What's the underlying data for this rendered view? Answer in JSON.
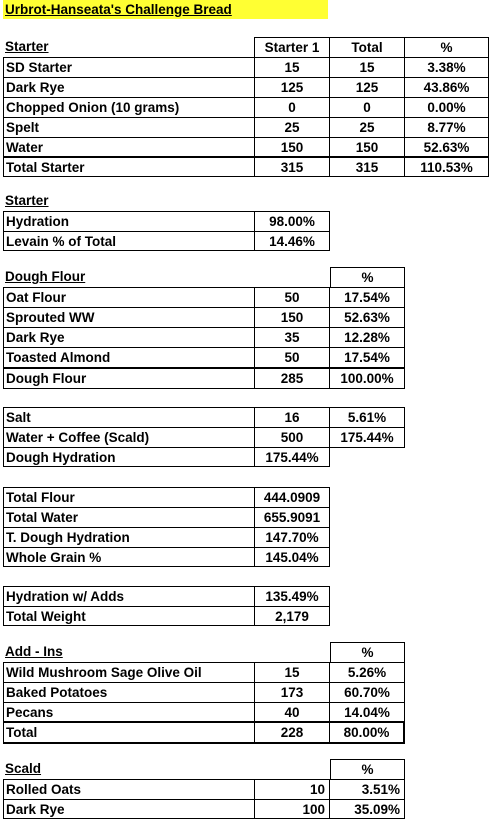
{
  "title": "Urbrot-Hanseata's Challenge Bread",
  "starter_table": {
    "header": [
      "Starter",
      "Starter 1",
      "Total",
      "%"
    ],
    "rows": [
      [
        "SD Starter",
        "15",
        "15",
        "3.38%"
      ],
      [
        "Dark Rye",
        "125",
        "125",
        "43.86%"
      ],
      [
        "Chopped Onion (10 grams)",
        "0",
        "0",
        "0.00%"
      ],
      [
        "Spelt",
        "25",
        "25",
        "8.77%"
      ],
      [
        "Water",
        "150",
        "150",
        "52.63%"
      ]
    ],
    "total": [
      "Total Starter",
      "315",
      "315",
      "110.53%"
    ]
  },
  "starter_summary": {
    "header": "Starter",
    "rows": [
      [
        "Hydration",
        "98.00%"
      ],
      [
        "Levain % of Total",
        "14.46%"
      ]
    ]
  },
  "dough_flour": {
    "header": "Dough Flour",
    "pct_header": "%",
    "rows": [
      [
        "Oat Flour",
        "50",
        "17.54%"
      ],
      [
        "Sprouted WW",
        "150",
        "52.63%"
      ],
      [
        "Dark Rye",
        "35",
        "12.28%"
      ],
      [
        "Toasted Almond",
        "50",
        "17.54%"
      ]
    ],
    "total": [
      "Dough Flour",
      "285",
      "100.00%"
    ]
  },
  "salt_water": {
    "rows": [
      [
        "Salt",
        "16",
        "5.61%"
      ],
      [
        "Water + Coffee (Scald)",
        "500",
        "175.44%"
      ]
    ],
    "hydration": [
      "Dough Hydration",
      "175.44%"
    ]
  },
  "totals": {
    "rows": [
      [
        "Total Flour",
        "444.0909"
      ],
      [
        "Total Water",
        "655.9091"
      ],
      [
        "T. Dough Hydration",
        "147.70%"
      ],
      [
        "Whole Grain %",
        "145.04%"
      ]
    ]
  },
  "adds_summary": {
    "rows": [
      [
        "Hydration w/ Adds",
        "135.49%"
      ],
      [
        "Total Weight",
        "2,179"
      ]
    ]
  },
  "add_ins": {
    "header": "Add - Ins",
    "pct_header": "%",
    "rows": [
      [
        "Wild Mushroom Sage Olive Oil",
        "15",
        "5.26%"
      ],
      [
        "Baked Potatoes",
        "173",
        "60.70%"
      ],
      [
        "Pecans",
        "40",
        "14.04%"
      ]
    ],
    "total": [
      "Total",
      "228",
      "80.00%"
    ]
  },
  "scald": {
    "header": "Scald",
    "pct_header": "%",
    "rows": [
      [
        "Rolled Oats",
        "10",
        "3.51%"
      ],
      [
        "Dark Rye",
        "100",
        "35.09%"
      ]
    ]
  }
}
